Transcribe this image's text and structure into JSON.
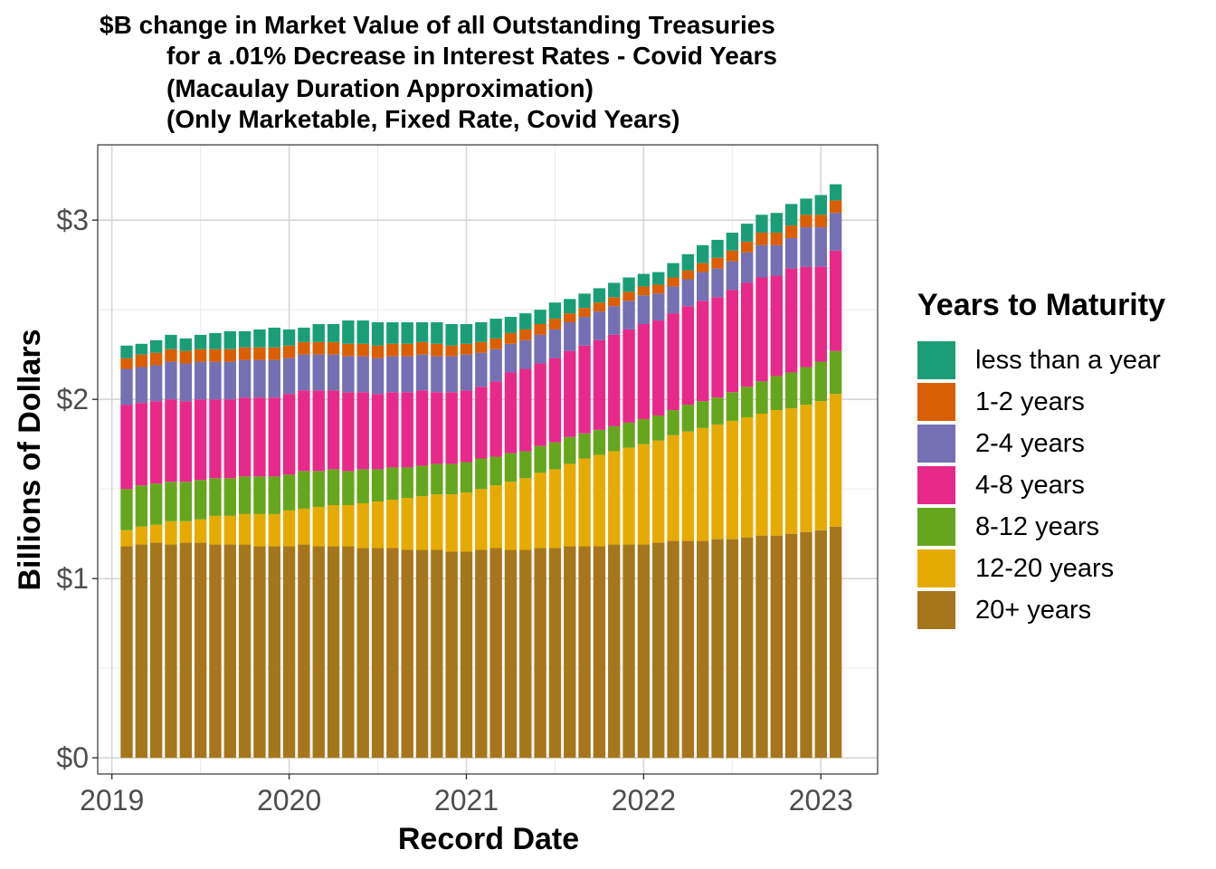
{
  "chart_data": {
    "type": "bar",
    "stacked": true,
    "title_lines": [
      "$B change in Market Value of all Outstanding Treasuries",
      "for a .01% Decrease in Interest Rates - Covid Years",
      "(Macaulay Duration Approximation)",
      "(Only Marketable, Fixed Rate, Covid Years)"
    ],
    "xlabel": "Record Date",
    "ylabel": "Billions of Dollars",
    "ylim": [
      -0.09,
      3.42
    ],
    "yticks": [
      0,
      1,
      2,
      3
    ],
    "ytick_labels": [
      "$0",
      "$1",
      "$2",
      "$3"
    ],
    "xlim": [
      2018.92,
      2023.32
    ],
    "xticks": [
      2019,
      2020,
      2021,
      2022,
      2023
    ],
    "xtick_labels": [
      "2019",
      "2020",
      "2021",
      "2022",
      "2023"
    ],
    "grid": true,
    "legend_title": "Years to Maturity",
    "legend_position": "right",
    "dates": [
      "2019-02",
      "2019-03",
      "2019-04",
      "2019-05",
      "2019-06",
      "2019-07",
      "2019-08",
      "2019-09",
      "2019-10",
      "2019-11",
      "2019-12",
      "2020-01",
      "2020-02",
      "2020-03",
      "2020-04",
      "2020-05",
      "2020-06",
      "2020-07",
      "2020-08",
      "2020-09",
      "2020-10",
      "2020-11",
      "2020-12",
      "2021-01",
      "2021-02",
      "2021-03",
      "2021-04",
      "2021-05",
      "2021-06",
      "2021-07",
      "2021-08",
      "2021-09",
      "2021-10",
      "2021-11",
      "2021-12",
      "2022-01",
      "2022-02",
      "2022-03",
      "2022-04",
      "2022-05",
      "2022-06",
      "2022-07",
      "2022-08",
      "2022-09",
      "2022-10",
      "2022-11",
      "2022-12",
      "2023-01",
      "2023-02"
    ],
    "series": [
      {
        "name": "20+ years",
        "color": "#A6761D",
        "values": [
          1.18,
          1.19,
          1.2,
          1.19,
          1.2,
          1.2,
          1.19,
          1.19,
          1.19,
          1.18,
          1.18,
          1.18,
          1.19,
          1.18,
          1.18,
          1.18,
          1.17,
          1.17,
          1.17,
          1.16,
          1.16,
          1.16,
          1.15,
          1.15,
          1.16,
          1.17,
          1.16,
          1.16,
          1.17,
          1.17,
          1.18,
          1.18,
          1.18,
          1.19,
          1.19,
          1.19,
          1.2,
          1.21,
          1.21,
          1.21,
          1.22,
          1.22,
          1.23,
          1.24,
          1.24,
          1.25,
          1.26,
          1.27,
          1.29
        ]
      },
      {
        "name": "12-20 years",
        "color": "#E6AB02",
        "values": [
          0.09,
          0.1,
          0.1,
          0.13,
          0.12,
          0.13,
          0.16,
          0.16,
          0.17,
          0.18,
          0.18,
          0.2,
          0.2,
          0.22,
          0.23,
          0.23,
          0.25,
          0.26,
          0.27,
          0.29,
          0.3,
          0.31,
          0.32,
          0.33,
          0.34,
          0.35,
          0.38,
          0.4,
          0.42,
          0.44,
          0.46,
          0.49,
          0.51,
          0.52,
          0.54,
          0.56,
          0.57,
          0.59,
          0.61,
          0.63,
          0.64,
          0.66,
          0.67,
          0.68,
          0.7,
          0.7,
          0.71,
          0.72,
          0.74
        ]
      },
      {
        "name": "8-12 years",
        "color": "#66A61E",
        "values": [
          0.23,
          0.23,
          0.23,
          0.22,
          0.22,
          0.22,
          0.21,
          0.21,
          0.21,
          0.21,
          0.21,
          0.2,
          0.21,
          0.2,
          0.2,
          0.19,
          0.19,
          0.18,
          0.18,
          0.17,
          0.17,
          0.17,
          0.17,
          0.17,
          0.17,
          0.16,
          0.16,
          0.15,
          0.15,
          0.15,
          0.15,
          0.14,
          0.14,
          0.14,
          0.14,
          0.14,
          0.14,
          0.14,
          0.15,
          0.15,
          0.15,
          0.16,
          0.17,
          0.18,
          0.19,
          0.2,
          0.21,
          0.22,
          0.24
        ]
      },
      {
        "name": "4-8 years",
        "color": "#E7298A",
        "values": [
          0.47,
          0.46,
          0.46,
          0.46,
          0.45,
          0.45,
          0.44,
          0.44,
          0.44,
          0.44,
          0.44,
          0.45,
          0.45,
          0.45,
          0.44,
          0.44,
          0.43,
          0.42,
          0.42,
          0.42,
          0.42,
          0.4,
          0.4,
          0.4,
          0.4,
          0.42,
          0.45,
          0.46,
          0.46,
          0.47,
          0.48,
          0.49,
          0.5,
          0.51,
          0.52,
          0.53,
          0.53,
          0.54,
          0.55,
          0.56,
          0.56,
          0.57,
          0.58,
          0.58,
          0.56,
          0.58,
          0.56,
          0.53,
          0.56
        ]
      },
      {
        "name": "2-4 years",
        "color": "#7570B3",
        "values": [
          0.2,
          0.2,
          0.2,
          0.21,
          0.21,
          0.21,
          0.21,
          0.21,
          0.21,
          0.21,
          0.21,
          0.2,
          0.2,
          0.2,
          0.2,
          0.2,
          0.2,
          0.2,
          0.2,
          0.2,
          0.2,
          0.2,
          0.2,
          0.2,
          0.19,
          0.18,
          0.16,
          0.16,
          0.16,
          0.16,
          0.16,
          0.16,
          0.16,
          0.16,
          0.16,
          0.16,
          0.15,
          0.15,
          0.15,
          0.16,
          0.16,
          0.16,
          0.17,
          0.18,
          0.17,
          0.17,
          0.22,
          0.22,
          0.21
        ]
      },
      {
        "name": "1-2 years",
        "color": "#D95F02",
        "values": [
          0.06,
          0.07,
          0.07,
          0.07,
          0.07,
          0.07,
          0.07,
          0.07,
          0.07,
          0.07,
          0.07,
          0.07,
          0.07,
          0.07,
          0.07,
          0.07,
          0.07,
          0.07,
          0.07,
          0.07,
          0.07,
          0.07,
          0.06,
          0.06,
          0.06,
          0.06,
          0.06,
          0.06,
          0.06,
          0.06,
          0.05,
          0.05,
          0.05,
          0.05,
          0.05,
          0.05,
          0.05,
          0.05,
          0.05,
          0.05,
          0.06,
          0.06,
          0.06,
          0.07,
          0.07,
          0.07,
          0.07,
          0.07,
          0.07
        ]
      },
      {
        "name": "less than a year",
        "color": "#1B9E77",
        "values": [
          0.07,
          0.06,
          0.07,
          0.08,
          0.07,
          0.08,
          0.09,
          0.1,
          0.09,
          0.1,
          0.11,
          0.09,
          0.08,
          0.1,
          0.1,
          0.13,
          0.13,
          0.13,
          0.12,
          0.12,
          0.11,
          0.12,
          0.12,
          0.11,
          0.11,
          0.11,
          0.09,
          0.09,
          0.08,
          0.09,
          0.08,
          0.08,
          0.08,
          0.08,
          0.08,
          0.07,
          0.07,
          0.08,
          0.09,
          0.1,
          0.1,
          0.1,
          0.1,
          0.1,
          0.11,
          0.12,
          0.09,
          0.11,
          0.09
        ]
      }
    ]
  }
}
